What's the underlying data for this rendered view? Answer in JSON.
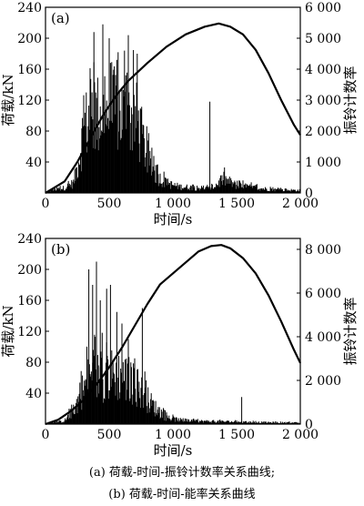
{
  "chart_data": [
    {
      "type": "bar",
      "panel_label": "(a)",
      "xlabel": "时间/s",
      "ylabel_left": "荷载/kN",
      "ylabel_right": "振铃计数率",
      "xlim": [
        0,
        2000
      ],
      "ylim_left": [
        0,
        240
      ],
      "ylim_right": [
        0,
        6000
      ],
      "x_ticks": [
        "0",
        "500",
        "1 000",
        "1 500",
        "2 000"
      ],
      "y_ticks_left": [
        "40",
        "80",
        "120",
        "160",
        "200",
        "240"
      ],
      "y_ticks_right": [
        "0",
        "1 000",
        "2 000",
        "3 000",
        "4 000",
        "5 000",
        "6 000"
      ],
      "series": [
        {
          "axis": "right",
          "kind": "bars",
          "envelope": [
            {
              "x": 0,
              "y": 0
            },
            {
              "x": 40,
              "y": 100
            },
            {
              "x": 150,
              "y": 200
            },
            {
              "x": 220,
              "y": 400
            },
            {
              "x": 260,
              "y": 1300
            },
            {
              "x": 300,
              "y": 2600
            },
            {
              "x": 350,
              "y": 3000
            },
            {
              "x": 450,
              "y": 3250
            },
            {
              "x": 550,
              "y": 3300
            },
            {
              "x": 650,
              "y": 3100
            },
            {
              "x": 720,
              "y": 2900
            },
            {
              "x": 780,
              "y": 1800
            },
            {
              "x": 820,
              "y": 1100
            },
            {
              "x": 880,
              "y": 650
            },
            {
              "x": 950,
              "y": 380
            },
            {
              "x": 1050,
              "y": 250
            },
            {
              "x": 1200,
              "y": 200
            },
            {
              "x": 1300,
              "y": 180
            },
            {
              "x": 1400,
              "y": 550
            },
            {
              "x": 1500,
              "y": 300
            },
            {
              "x": 1650,
              "y": 200
            },
            {
              "x": 1800,
              "y": 130
            },
            {
              "x": 2000,
              "y": 100
            }
          ],
          "spikes": [
            {
              "x": 380,
              "y": 5200
            },
            {
              "x": 450,
              "y": 5450
            },
            {
              "x": 500,
              "y": 5000
            },
            {
              "x": 560,
              "y": 4300
            },
            {
              "x": 620,
              "y": 4600
            },
            {
              "x": 650,
              "y": 5100
            },
            {
              "x": 720,
              "y": 4500
            },
            {
              "x": 1290,
              "y": 2950
            }
          ]
        },
        {
          "axis": "left",
          "kind": "line",
          "points": [
            {
              "x": 0,
              "y": 0
            },
            {
              "x": 50,
              "y": 5
            },
            {
              "x": 150,
              "y": 15
            },
            {
              "x": 250,
              "y": 40
            },
            {
              "x": 350,
              "y": 70
            },
            {
              "x": 450,
              "y": 100
            },
            {
              "x": 550,
              "y": 125
            },
            {
              "x": 650,
              "y": 145
            },
            {
              "x": 800,
              "y": 168
            },
            {
              "x": 950,
              "y": 189
            },
            {
              "x": 1100,
              "y": 205
            },
            {
              "x": 1250,
              "y": 215
            },
            {
              "x": 1360,
              "y": 219
            },
            {
              "x": 1450,
              "y": 215
            },
            {
              "x": 1550,
              "y": 205
            },
            {
              "x": 1650,
              "y": 185
            },
            {
              "x": 1750,
              "y": 155
            },
            {
              "x": 1850,
              "y": 120
            },
            {
              "x": 1950,
              "y": 88
            },
            {
              "x": 2000,
              "y": 75
            }
          ]
        }
      ]
    },
    {
      "type": "bar",
      "panel_label": "(b)",
      "xlabel": "时间/s",
      "ylabel_left": "荷载/kN",
      "ylabel_right": "振铃计数率",
      "xlim": [
        0,
        2000
      ],
      "ylim_left": [
        0,
        240
      ],
      "ylim_right": [
        0,
        8500
      ],
      "x_ticks": [
        "0",
        "500",
        "1 000",
        "1 500",
        "2 000"
      ],
      "y_ticks_left": [
        "40",
        "80",
        "120",
        "160",
        "200",
        "240"
      ],
      "y_ticks_right": [
        "0",
        "2 000",
        "4 000",
        "6 000",
        "8 000"
      ],
      "series": [
        {
          "axis": "left",
          "kind": "bars",
          "envelope": [
            {
              "x": 0,
              "y": 0
            },
            {
              "x": 150,
              "y": 5
            },
            {
              "x": 230,
              "y": 25
            },
            {
              "x": 280,
              "y": 50
            },
            {
              "x": 350,
              "y": 75
            },
            {
              "x": 450,
              "y": 78
            },
            {
              "x": 550,
              "y": 80
            },
            {
              "x": 650,
              "y": 72
            },
            {
              "x": 720,
              "y": 60
            },
            {
              "x": 800,
              "y": 40
            },
            {
              "x": 880,
              "y": 22
            },
            {
              "x": 950,
              "y": 10
            },
            {
              "x": 1100,
              "y": 5
            },
            {
              "x": 1400,
              "y": 4
            },
            {
              "x": 1600,
              "y": 3
            },
            {
              "x": 2000,
              "y": 2
            }
          ],
          "spikes": [
            {
              "x": 340,
              "y": 200
            },
            {
              "x": 370,
              "y": 180
            },
            {
              "x": 400,
              "y": 210
            },
            {
              "x": 430,
              "y": 160
            },
            {
              "x": 480,
              "y": 175
            },
            {
              "x": 510,
              "y": 180
            },
            {
              "x": 560,
              "y": 145
            },
            {
              "x": 600,
              "y": 130
            },
            {
              "x": 650,
              "y": 110
            },
            {
              "x": 700,
              "y": 85
            },
            {
              "x": 760,
              "y": 150
            },
            {
              "x": 1540,
              "y": 35
            }
          ]
        },
        {
          "axis": "right",
          "kind": "line",
          "points": [
            {
              "x": 0,
              "y": 0
            },
            {
              "x": 100,
              "y": 200
            },
            {
              "x": 200,
              "y": 600
            },
            {
              "x": 300,
              "y": 1100
            },
            {
              "x": 400,
              "y": 1800
            },
            {
              "x": 500,
              "y": 2600
            },
            {
              "x": 600,
              "y": 3500
            },
            {
              "x": 700,
              "y": 4500
            },
            {
              "x": 800,
              "y": 5500
            },
            {
              "x": 900,
              "y": 6400
            },
            {
              "x": 1000,
              "y": 6900
            },
            {
              "x": 1100,
              "y": 7400
            },
            {
              "x": 1200,
              "y": 7900
            },
            {
              "x": 1300,
              "y": 8150
            },
            {
              "x": 1380,
              "y": 8200
            },
            {
              "x": 1450,
              "y": 8050
            },
            {
              "x": 1550,
              "y": 7600
            },
            {
              "x": 1650,
              "y": 6900
            },
            {
              "x": 1750,
              "y": 5900
            },
            {
              "x": 1850,
              "y": 4700
            },
            {
              "x": 1950,
              "y": 3400
            },
            {
              "x": 2000,
              "y": 2800
            }
          ]
        }
      ]
    }
  ],
  "captions": {
    "a": "(a) 荷载-时间-振铃计数率关系曲线;",
    "b": "(b) 荷载-时间-能率关系曲线"
  }
}
